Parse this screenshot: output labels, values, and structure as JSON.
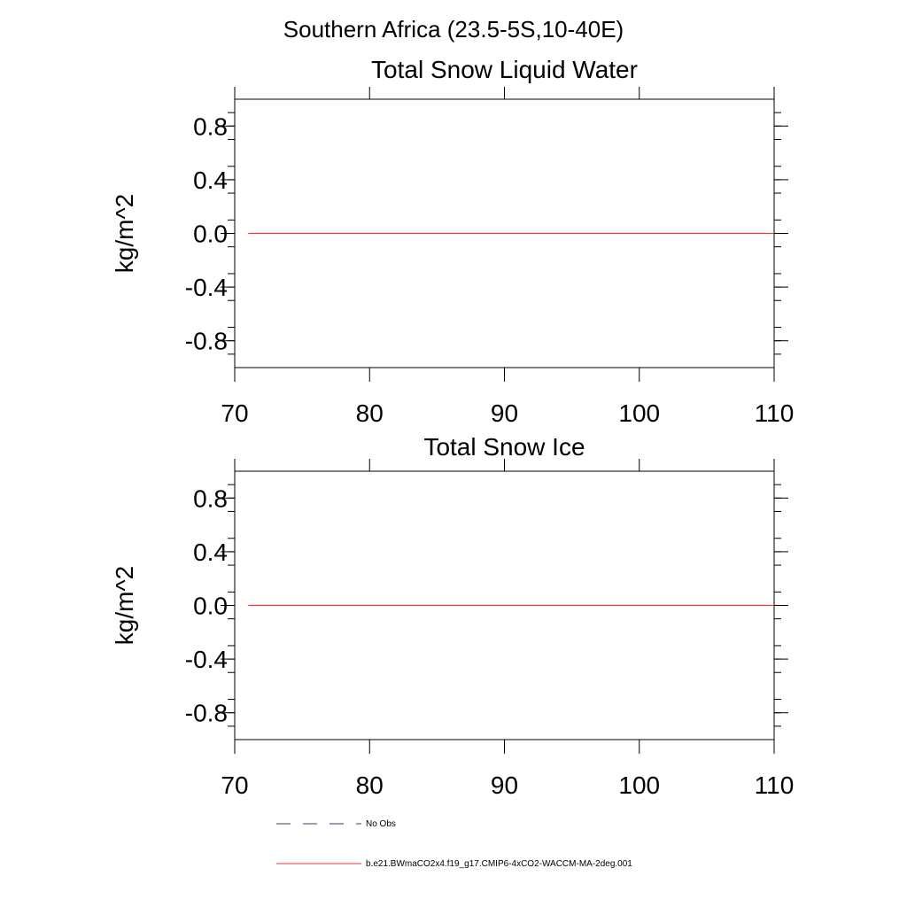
{
  "figure": {
    "title": "Southern Africa (23.5-5S,10-40E)"
  },
  "chart_data": [
    {
      "type": "line",
      "title": "Total Snow Liquid Water",
      "xlabel": "",
      "ylabel": "kg/m^2",
      "xlim": [
        70,
        110
      ],
      "ylim": [
        -1.0,
        1.0
      ],
      "x_ticks": [
        70,
        80,
        90,
        100,
        110
      ],
      "x_tick_labels": [
        "70",
        "80",
        "90",
        "100",
        "110"
      ],
      "y_ticks": [
        0.8,
        0.4,
        0.0,
        -0.4,
        -0.8
      ],
      "y_tick_labels": [
        "0.8",
        "0.4",
        "0.0",
        "-0.4",
        "-0.8"
      ],
      "grid": false,
      "series": [
        {
          "name": "b.e21.BWmaCO2x4.f19_g17.CMIP6-4xCO2-WACCM-MA-2deg.001",
          "color": "#e8383b",
          "x": [
            71,
            110
          ],
          "y": [
            0.0,
            0.0
          ]
        }
      ]
    },
    {
      "type": "line",
      "title": "Total Snow Ice",
      "xlabel": "",
      "ylabel": "kg/m^2",
      "xlim": [
        70,
        110
      ],
      "ylim": [
        -1.0,
        1.0
      ],
      "x_ticks": [
        70,
        80,
        90,
        100,
        110
      ],
      "x_tick_labels": [
        "70",
        "80",
        "90",
        "100",
        "110"
      ],
      "y_ticks": [
        0.8,
        0.4,
        0.0,
        -0.4,
        -0.8
      ],
      "y_tick_labels": [
        "0.8",
        "0.4",
        "0.0",
        "-0.4",
        "-0.8"
      ],
      "grid": false,
      "series": [
        {
          "name": "b.e21.BWmaCO2x4.f19_g17.CMIP6-4xCO2-WACCM-MA-2deg.001",
          "color": "#e8383b",
          "x": [
            71,
            110
          ],
          "y": [
            0.0,
            0.0
          ]
        }
      ]
    }
  ],
  "legend": {
    "placement": "bottom-left",
    "entries": [
      {
        "label": "No Obs",
        "style": "dashed",
        "color": "#3a3a6a"
      },
      {
        "label": "b.e21.BWmaCO2x4.f19_g17.CMIP6-4xCO2-WACCM-MA-2deg.001",
        "style": "solid",
        "color": "#e8383b"
      }
    ]
  }
}
